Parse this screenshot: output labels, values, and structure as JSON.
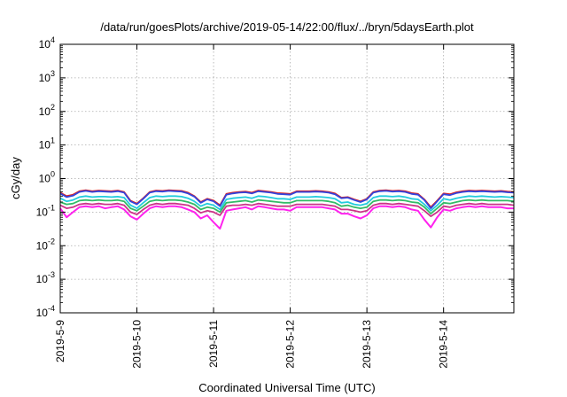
{
  "chart_data": {
    "type": "line",
    "title": "/data/run/goesPlots/archive/2019-05-14/22:00/flux/../bryn/5daysEarth.plot",
    "xlabel": "Coordinated Universal Time (UTC)",
    "ylabel": "cGy/day",
    "yscale": "log",
    "ylim": [
      0.0001,
      10000
    ],
    "y_ticks": [
      {
        "value": 0.0001,
        "base": "10",
        "exp": "-4"
      },
      {
        "value": 0.001,
        "base": "10",
        "exp": "-3"
      },
      {
        "value": 0.01,
        "base": "10",
        "exp": "-2"
      },
      {
        "value": 0.1,
        "base": "10",
        "exp": "-1"
      },
      {
        "value": 1,
        "base": "10",
        "exp": "0"
      },
      {
        "value": 10,
        "base": "10",
        "exp": "1"
      },
      {
        "value": 100,
        "base": "10",
        "exp": "2"
      },
      {
        "value": 1000,
        "base": "10",
        "exp": "3"
      },
      {
        "value": 10000,
        "base": "10",
        "exp": "4"
      }
    ],
    "xlim": [
      "2019-05-09",
      "2019-05-14 22:00"
    ],
    "x_ticks": [
      "2019-5-9",
      "2019-5-10",
      "2019-5-11",
      "2019-5-12",
      "2019-5-13",
      "2019-5-14"
    ],
    "grid": true,
    "x": [
      "2019-05-09 00:00",
      "2019-05-09 02:00",
      "2019-05-09 04:00",
      "2019-05-09 06:00",
      "2019-05-09 08:00",
      "2019-05-09 10:00",
      "2019-05-09 12:00",
      "2019-05-09 14:00",
      "2019-05-09 16:00",
      "2019-05-09 18:00",
      "2019-05-09 20:00",
      "2019-05-09 22:00",
      "2019-05-10 00:00",
      "2019-05-10 02:00",
      "2019-05-10 04:00",
      "2019-05-10 06:00",
      "2019-05-10 08:00",
      "2019-05-10 10:00",
      "2019-05-10 12:00",
      "2019-05-10 14:00",
      "2019-05-10 16:00",
      "2019-05-10 18:00",
      "2019-05-10 20:00",
      "2019-05-10 22:00",
      "2019-05-11 00:00",
      "2019-05-11 02:00",
      "2019-05-11 04:00",
      "2019-05-11 06:00",
      "2019-05-11 08:00",
      "2019-05-11 10:00",
      "2019-05-11 12:00",
      "2019-05-11 14:00",
      "2019-05-11 16:00",
      "2019-05-11 18:00",
      "2019-05-11 20:00",
      "2019-05-11 22:00",
      "2019-05-12 00:00",
      "2019-05-12 02:00",
      "2019-05-12 04:00",
      "2019-05-12 06:00",
      "2019-05-12 08:00",
      "2019-05-12 10:00",
      "2019-05-12 12:00",
      "2019-05-12 14:00",
      "2019-05-12 16:00",
      "2019-05-12 18:00",
      "2019-05-12 20:00",
      "2019-05-12 22:00",
      "2019-05-13 00:00",
      "2019-05-13 02:00",
      "2019-05-13 04:00",
      "2019-05-13 06:00",
      "2019-05-13 08:00",
      "2019-05-13 10:00",
      "2019-05-13 12:00",
      "2019-05-13 14:00",
      "2019-05-13 16:00",
      "2019-05-13 18:00",
      "2019-05-13 20:00",
      "2019-05-13 22:00",
      "2019-05-14 00:00",
      "2019-05-14 02:00",
      "2019-05-14 04:00",
      "2019-05-14 06:00",
      "2019-05-14 08:00",
      "2019-05-14 10:00",
      "2019-05-14 12:00",
      "2019-05-14 14:00",
      "2019-05-14 16:00",
      "2019-05-14 18:00",
      "2019-05-14 20:00",
      "2019-05-14 22:00"
    ],
    "series": [
      {
        "color": "#dd2222",
        "values": [
          0.38,
          0.3,
          0.33,
          0.42,
          0.45,
          0.42,
          0.44,
          0.43,
          0.42,
          0.44,
          0.4,
          0.22,
          0.18,
          0.26,
          0.4,
          0.44,
          0.43,
          0.45,
          0.44,
          0.43,
          0.38,
          0.3,
          0.2,
          0.25,
          0.22,
          0.16,
          0.35,
          0.38,
          0.4,
          0.41,
          0.38,
          0.44,
          0.42,
          0.4,
          0.37,
          0.36,
          0.35,
          0.42,
          0.42,
          0.42,
          0.43,
          0.42,
          0.4,
          0.36,
          0.27,
          0.28,
          0.24,
          0.21,
          0.25,
          0.4,
          0.44,
          0.45,
          0.43,
          0.44,
          0.42,
          0.37,
          0.35,
          0.24,
          0.14,
          0.22,
          0.36,
          0.34,
          0.39,
          0.42,
          0.44,
          0.43,
          0.44,
          0.43,
          0.42,
          0.43,
          0.41,
          0.4
        ]
      },
      {
        "color": "#3344dd",
        "values": [
          0.36,
          0.28,
          0.31,
          0.4,
          0.43,
          0.4,
          0.42,
          0.41,
          0.4,
          0.42,
          0.38,
          0.21,
          0.17,
          0.25,
          0.38,
          0.42,
          0.41,
          0.43,
          0.42,
          0.41,
          0.36,
          0.29,
          0.19,
          0.24,
          0.21,
          0.15,
          0.33,
          0.36,
          0.38,
          0.39,
          0.36,
          0.42,
          0.4,
          0.38,
          0.35,
          0.34,
          0.33,
          0.4,
          0.4,
          0.4,
          0.41,
          0.4,
          0.38,
          0.34,
          0.26,
          0.27,
          0.23,
          0.2,
          0.24,
          0.38,
          0.42,
          0.43,
          0.41,
          0.42,
          0.4,
          0.35,
          0.33,
          0.23,
          0.13,
          0.21,
          0.34,
          0.32,
          0.37,
          0.4,
          0.42,
          0.41,
          0.42,
          0.41,
          0.4,
          0.41,
          0.39,
          0.38
        ]
      },
      {
        "color": "#22ccdd",
        "values": [
          0.26,
          0.21,
          0.23,
          0.28,
          0.3,
          0.28,
          0.29,
          0.29,
          0.28,
          0.29,
          0.27,
          0.16,
          0.13,
          0.19,
          0.27,
          0.3,
          0.29,
          0.3,
          0.3,
          0.29,
          0.26,
          0.21,
          0.15,
          0.18,
          0.16,
          0.12,
          0.24,
          0.26,
          0.27,
          0.28,
          0.26,
          0.3,
          0.29,
          0.27,
          0.25,
          0.25,
          0.24,
          0.28,
          0.28,
          0.28,
          0.29,
          0.28,
          0.27,
          0.25,
          0.19,
          0.2,
          0.17,
          0.16,
          0.18,
          0.27,
          0.3,
          0.3,
          0.29,
          0.3,
          0.28,
          0.25,
          0.24,
          0.17,
          0.11,
          0.16,
          0.25,
          0.23,
          0.26,
          0.28,
          0.3,
          0.29,
          0.3,
          0.29,
          0.28,
          0.29,
          0.28,
          0.27
        ]
      },
      {
        "color": "#33bb66",
        "values": [
          0.2,
          0.17,
          0.18,
          0.22,
          0.23,
          0.22,
          0.23,
          0.22,
          0.22,
          0.23,
          0.21,
          0.13,
          0.11,
          0.15,
          0.21,
          0.23,
          0.22,
          0.23,
          0.23,
          0.22,
          0.2,
          0.17,
          0.12,
          0.14,
          0.13,
          0.1,
          0.19,
          0.2,
          0.21,
          0.22,
          0.2,
          0.23,
          0.22,
          0.21,
          0.2,
          0.19,
          0.19,
          0.22,
          0.22,
          0.22,
          0.22,
          0.22,
          0.21,
          0.19,
          0.15,
          0.16,
          0.14,
          0.13,
          0.14,
          0.21,
          0.23,
          0.23,
          0.22,
          0.23,
          0.22,
          0.2,
          0.19,
          0.14,
          0.09,
          0.13,
          0.19,
          0.18,
          0.2,
          0.22,
          0.23,
          0.22,
          0.23,
          0.22,
          0.22,
          0.22,
          0.22,
          0.21
        ]
      },
      {
        "color": "#cc3388",
        "values": [
          0.16,
          0.13,
          0.14,
          0.17,
          0.18,
          0.17,
          0.18,
          0.17,
          0.17,
          0.18,
          0.16,
          0.1,
          0.085,
          0.12,
          0.16,
          0.18,
          0.17,
          0.18,
          0.18,
          0.17,
          0.16,
          0.13,
          0.095,
          0.11,
          0.1,
          0.08,
          0.15,
          0.16,
          0.16,
          0.17,
          0.16,
          0.18,
          0.17,
          0.16,
          0.15,
          0.15,
          0.15,
          0.17,
          0.17,
          0.17,
          0.17,
          0.17,
          0.16,
          0.15,
          0.12,
          0.12,
          0.11,
          0.1,
          0.11,
          0.16,
          0.18,
          0.18,
          0.17,
          0.18,
          0.17,
          0.16,
          0.15,
          0.11,
          0.075,
          0.1,
          0.15,
          0.14,
          0.16,
          0.17,
          0.18,
          0.17,
          0.18,
          0.17,
          0.17,
          0.17,
          0.17,
          0.16
        ]
      },
      {
        "color": "#ff22ee",
        "values": [
          0.13,
          0.07,
          0.1,
          0.14,
          0.15,
          0.14,
          0.15,
          0.13,
          0.14,
          0.15,
          0.12,
          0.075,
          0.06,
          0.09,
          0.13,
          0.15,
          0.14,
          0.15,
          0.15,
          0.14,
          0.12,
          0.1,
          0.065,
          0.08,
          0.05,
          0.032,
          0.11,
          0.12,
          0.13,
          0.14,
          0.12,
          0.15,
          0.14,
          0.13,
          0.12,
          0.12,
          0.11,
          0.14,
          0.14,
          0.14,
          0.14,
          0.14,
          0.13,
          0.12,
          0.09,
          0.09,
          0.075,
          0.065,
          0.08,
          0.13,
          0.15,
          0.15,
          0.14,
          0.15,
          0.14,
          0.12,
          0.11,
          0.06,
          0.035,
          0.07,
          0.12,
          0.11,
          0.13,
          0.14,
          0.15,
          0.14,
          0.15,
          0.14,
          0.14,
          0.14,
          0.13,
          0.13
        ]
      }
    ]
  }
}
